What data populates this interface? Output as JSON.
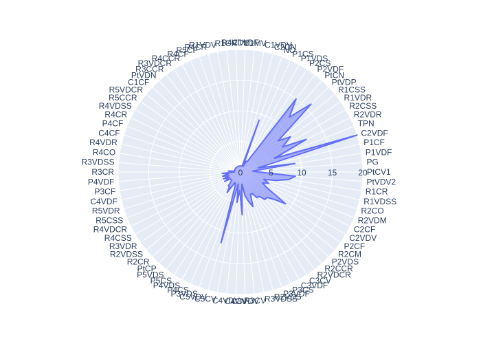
{
  "chart_data": {
    "type": "radar",
    "radial_range": [
      0,
      20
    ],
    "radial_ticks": [
      "0",
      "5",
      "10",
      "15",
      "20"
    ],
    "grid": true,
    "colors": {
      "plot_bg": "#e5ecf6",
      "grid": "#ffffff",
      "line": "#636efa",
      "fill": "rgba(99,110,250,0.5)",
      "text": "#2a3f5f"
    },
    "categories": [
      "PtCV1",
      "PG",
      "P1VDF",
      "P1CF",
      "C2VDF",
      "TPN",
      "R2VDR",
      "R2CSS",
      "R1VDR",
      "R1CSS",
      "PtVDP",
      "PtCN",
      "P2VDF",
      "P2CS",
      "P1VDS",
      "P1CS",
      "NO",
      "C2CN",
      "C1VDV",
      "C1MV",
      "C1VDF",
      "R4VDM",
      "R1CR",
      "R1VDV",
      "R4CR",
      "R5CF",
      "R4CF",
      "R4CCR",
      "R3VDCR",
      "R3CCR",
      "PtVDN",
      "C1CF",
      "R5VDCR",
      "R5CCR",
      "R4VDSS",
      "R4CR",
      "P4CF",
      "C4CF",
      "R4VDR",
      "R4CO",
      "R3VDSS",
      "R3CR",
      "P4VDF",
      "P3CF",
      "C4VDF",
      "R5VDR",
      "R5CSS",
      "R4VDCR",
      "R4CSS",
      "R3VDR",
      "R2VDSS",
      "R2CR",
      "PtCP",
      "P5VDS",
      "P5CS",
      "P4VDS",
      "P4CS",
      "P3VDS",
      "C5VDV",
      "C5CV",
      "C4VDV",
      "C4CV",
      "C3VDV",
      "R3CV",
      "R3VDSS",
      "R2VDS",
      "P3VDF",
      "P3CS",
      "C3VDF",
      "C3CV",
      "R2VDCR",
      "R2CCR",
      "P2VDS",
      "R2CM",
      "P2CF",
      "C2VDV",
      "C2CF",
      "R2VDM",
      "R2CO",
      "R1VDSS",
      "R1CR",
      "PtVDV2"
    ],
    "values": [
      3,
      2,
      9,
      3,
      20,
      6,
      12,
      8,
      10,
      8,
      16,
      12,
      15,
      2,
      2,
      1,
      9,
      1,
      1,
      1,
      1,
      1,
      1,
      1,
      1,
      1,
      1,
      1,
      1,
      1,
      1,
      1,
      1,
      1,
      1,
      1,
      1,
      1,
      1,
      1,
      2,
      1,
      3,
      2,
      3,
      2,
      3,
      2,
      3,
      2,
      2,
      2,
      3,
      3,
      4,
      2,
      2,
      3,
      12,
      2,
      5,
      3,
      7,
      2,
      4,
      5,
      6,
      4,
      4,
      5,
      5,
      6,
      6,
      7,
      9,
      5,
      4,
      5,
      4,
      6,
      8,
      9
    ]
  }
}
